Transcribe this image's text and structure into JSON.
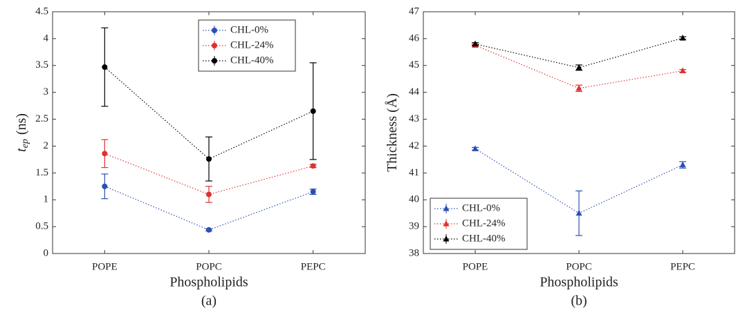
{
  "chart_data": [
    {
      "type": "line",
      "caption": "(a)",
      "xlabel": "Phospholipids",
      "ylabel": [
        "t",
        "ep",
        "(ns)"
      ],
      "categories": [
        "POPE",
        "POPC",
        "PEPC"
      ],
      "ylim": [
        0,
        4.5
      ],
      "yticks": [
        0,
        0.5,
        1,
        1.5,
        2,
        2.5,
        3,
        3.5,
        4,
        4.5
      ],
      "marker": "circle",
      "legend": "top",
      "series": [
        {
          "name": "CHL-0%",
          "color": "#2a4fb5",
          "values": [
            1.25,
            0.44,
            1.15
          ],
          "errors": [
            0.23,
            0.02,
            0.05
          ]
        },
        {
          "name": "CHL-24%",
          "color": "#e03030",
          "values": [
            1.86,
            1.1,
            1.63
          ],
          "errors": [
            0.26,
            0.15,
            0.03
          ]
        },
        {
          "name": "CHL-40%",
          "color": "#000000",
          "values": [
            3.47,
            1.76,
            2.65
          ],
          "errors": [
            0.73,
            0.41,
            0.9
          ]
        }
      ]
    },
    {
      "type": "line",
      "caption": "(b)",
      "xlabel": "Phospholipids",
      "ylabel": [
        "Thickness (Å)"
      ],
      "categories": [
        "POPE",
        "POPC",
        "PEPC"
      ],
      "ylim": [
        38,
        47
      ],
      "yticks": [
        38,
        39,
        40,
        41,
        42,
        43,
        44,
        45,
        46,
        47
      ],
      "marker": "triangle",
      "legend": "bottom-left",
      "series": [
        {
          "name": "CHL-0%",
          "color": "#2a4fb5",
          "values": [
            41.9,
            39.5,
            41.3
          ],
          "errors": [
            0.05,
            0.83,
            0.12
          ]
        },
        {
          "name": "CHL-24%",
          "color": "#e03030",
          "values": [
            45.75,
            44.15,
            44.8
          ],
          "errors": [
            0.05,
            0.12,
            0.05
          ]
        },
        {
          "name": "CHL-40%",
          "color": "#000000",
          "values": [
            45.8,
            44.92,
            46.02
          ],
          "errors": [
            0.05,
            0.1,
            0.05
          ]
        }
      ]
    }
  ]
}
